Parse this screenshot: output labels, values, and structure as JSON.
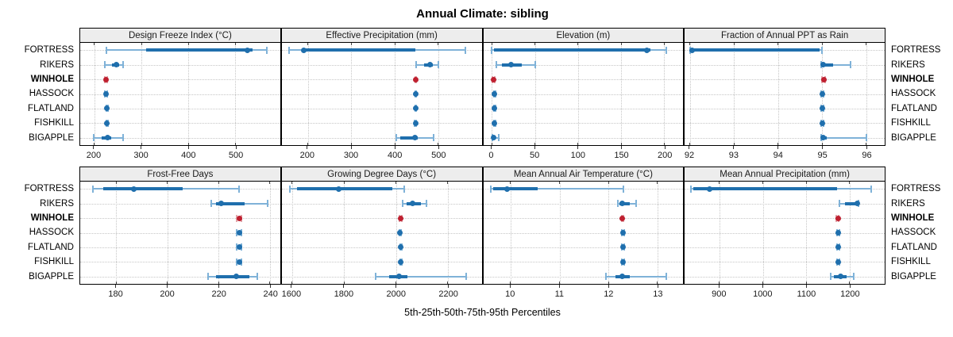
{
  "title": "Annual Climate: sibling",
  "caption": "5th-25th-50th-75th-95th Percentiles",
  "sites": [
    "FORTRESS",
    "RIKERS",
    "WINHOLE",
    "HASSOCK",
    "FLATLAND",
    "FISHKILL",
    "BIGAPPLE"
  ],
  "highlight_site": "WINHOLE",
  "colors": {
    "point_blue": "#1f6fad",
    "range_light_blue": "#7fb2d8",
    "point_red": "#bf2030",
    "range_light_red": "#e2a9ad",
    "strip_bg": "#ededed",
    "grid": "#c6c6c6",
    "panel_border": "#000000"
  },
  "chart_data": {
    "type": "dot-whisker-percentiles",
    "rows": 2,
    "cols": 4,
    "percentile_keys": [
      "p5",
      "p25",
      "p50",
      "p75",
      "p95"
    ],
    "legend_note": "dot = median, thick bar = 25th-75th, thin bar with caps = 5th-95th",
    "panels": [
      {
        "title": "Design Freeze Index (°C)",
        "xlim": [
          170,
          595
        ],
        "ticks": [
          200,
          300,
          400,
          500
        ],
        "series": {
          "FORTRESS": [
            226,
            310,
            526,
            536,
            566
          ],
          "RIKERS": [
            222,
            238,
            247,
            252,
            261
          ],
          "WINHOLE": [
            223,
            224,
            225,
            226,
            227
          ],
          "HASSOCK": [
            223,
            224,
            225,
            226,
            228
          ],
          "FLATLAND": [
            225,
            226,
            227,
            228,
            229
          ],
          "FISHKILL": [
            225,
            226,
            227,
            228,
            229
          ],
          "BIGAPPLE": [
            199,
            216,
            228,
            236,
            262
          ]
        }
      },
      {
        "title": "Effective Precipitation (mm)",
        "xlim": [
          140,
          600
        ],
        "ticks": [
          200,
          300,
          400,
          500
        ],
        "series": {
          "FORTRESS": [
            157,
            188,
            190,
            447,
            563
          ],
          "RIKERS": [
            449,
            468,
            482,
            488,
            500
          ],
          "WINHOLE": [
            447,
            447,
            448,
            449,
            449
          ],
          "HASSOCK": [
            447,
            448,
            448,
            449,
            450
          ],
          "FLATLAND": [
            447,
            447,
            448,
            448,
            449
          ],
          "FISHKILL": [
            446,
            447,
            448,
            448,
            449
          ],
          "BIGAPPLE": [
            404,
            413,
            446,
            453,
            489
          ]
        }
      },
      {
        "title": "Elevation (m)",
        "xlim": [
          -10,
          222
        ],
        "ticks": [
          0,
          50,
          100,
          150,
          200
        ],
        "series": {
          "FORTRESS": [
            0,
            2,
            180,
            184,
            202
          ],
          "RIKERS": [
            5,
            12,
            22,
            35,
            50
          ],
          "WINHOLE": [
            1,
            2,
            2,
            3,
            3
          ],
          "HASSOCK": [
            2,
            2,
            3,
            3,
            4
          ],
          "FLATLAND": [
            2,
            2,
            3,
            3,
            4
          ],
          "FISHKILL": [
            2,
            2,
            3,
            3,
            4
          ],
          "BIGAPPLE": [
            1,
            2,
            2,
            4,
            8
          ]
        }
      },
      {
        "title": "Fraction of Annual PPT as Rain",
        "xlim": [
          91.88,
          96.42
        ],
        "ticks": [
          92,
          93,
          94,
          95,
          96
        ],
        "series": {
          "FORTRESS": [
            92.0,
            92.02,
            92.05,
            94.95,
            95.0
          ],
          "RIKERS": [
            94.98,
            95.0,
            95.03,
            95.25,
            95.65
          ],
          "WINHOLE": [
            95.0,
            95.02,
            95.04,
            95.05,
            95.07
          ],
          "HASSOCK": [
            94.98,
            95.0,
            95.01,
            95.02,
            95.04
          ],
          "FLATLAND": [
            94.98,
            95.0,
            95.01,
            95.02,
            95.04
          ],
          "FISHKILL": [
            94.98,
            95.0,
            95.01,
            95.02,
            95.04
          ],
          "BIGAPPLE": [
            94.98,
            95.0,
            95.03,
            95.1,
            96.0
          ]
        }
      },
      {
        "title": "Frost-Free Days",
        "xlim": [
          166,
          244
        ],
        "ticks": [
          180,
          200,
          220,
          240
        ],
        "series": {
          "FORTRESS": [
            171,
            175,
            187,
            206,
            228
          ],
          "RIKERS": [
            217,
            219,
            221,
            230,
            239
          ],
          "WINHOLE": [
            227,
            228,
            228,
            229,
            229
          ],
          "HASSOCK": [
            227,
            228,
            228,
            228,
            229
          ],
          "FLATLAND": [
            227,
            228,
            228,
            229,
            229
          ],
          "FISHKILL": [
            227,
            228,
            228,
            229,
            229
          ],
          "BIGAPPLE": [
            216,
            219,
            227,
            232,
            235
          ]
        }
      },
      {
        "title": "Growing Degree Days (°C)",
        "xlim": [
          1560,
          2330
        ],
        "ticks": [
          1600,
          1800,
          2000,
          2200
        ],
        "series": {
          "FORTRESS": [
            1592,
            1620,
            1779,
            1985,
            2031
          ],
          "RIKERS": [
            2025,
            2042,
            2063,
            2097,
            2117
          ],
          "WINHOLE": [
            2014,
            2016,
            2018,
            2020,
            2022
          ],
          "HASSOCK": [
            2012,
            2014,
            2015,
            2017,
            2019
          ],
          "FLATLAND": [
            2016,
            2018,
            2019,
            2021,
            2023
          ],
          "FISHKILL": [
            2015,
            2017,
            2018,
            2020,
            2022
          ],
          "BIGAPPLE": [
            1921,
            1973,
            2012,
            2045,
            2271
          ]
        }
      },
      {
        "title": "Mean Annual Air Temperature (°C)",
        "xlim": [
          9.44,
          13.53
        ],
        "ticks": [
          10,
          11,
          12,
          13
        ],
        "series": {
          "FORTRESS": [
            9.6,
            9.65,
            9.93,
            10.55,
            12.3
          ],
          "RIKERS": [
            12.19,
            12.23,
            12.29,
            12.44,
            12.57
          ],
          "WINHOLE": [
            12.27,
            12.28,
            12.29,
            12.3,
            12.31
          ],
          "HASSOCK": [
            12.28,
            12.29,
            12.3,
            12.31,
            12.32
          ],
          "FLATLAND": [
            12.28,
            12.29,
            12.3,
            12.31,
            12.32
          ],
          "FISHKILL": [
            12.28,
            12.29,
            12.3,
            12.31,
            12.32
          ],
          "BIGAPPLE": [
            11.95,
            12.14,
            12.28,
            12.44,
            13.18
          ]
        }
      },
      {
        "title": "Mean Annual Precipitation (mm)",
        "xlim": [
          820,
          1281
        ],
        "ticks": [
          900,
          1000,
          1100,
          1200
        ],
        "series": {
          "FORTRESS": [
            834,
            840,
            877,
            1172,
            1250
          ],
          "RIKERS": [
            1176,
            1190,
            1217,
            1218,
            1220
          ],
          "WINHOLE": [
            1170,
            1171,
            1173,
            1174,
            1175
          ],
          "HASSOCK": [
            1171,
            1172,
            1173,
            1174,
            1176
          ],
          "FLATLAND": [
            1172,
            1173,
            1174,
            1175,
            1177
          ],
          "FISHKILL": [
            1172,
            1173,
            1174,
            1175,
            1177
          ],
          "BIGAPPLE": [
            1156,
            1164,
            1180,
            1194,
            1210
          ]
        }
      }
    ]
  }
}
